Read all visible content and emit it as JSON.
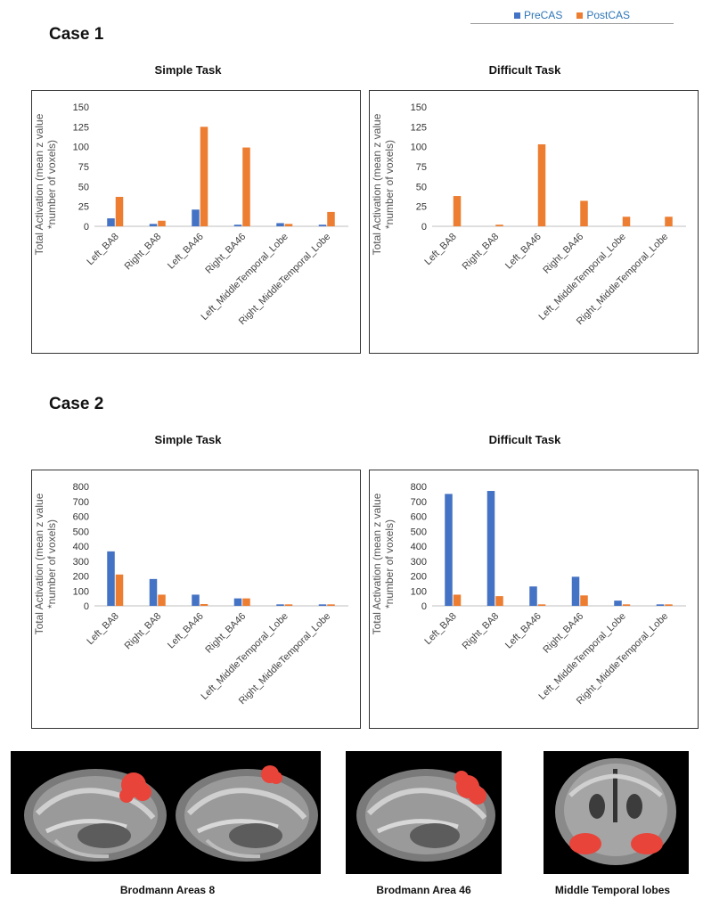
{
  "legend": {
    "items": [
      {
        "label": "PreCAS",
        "color": "#4472c4"
      },
      {
        "label": "PostCAS",
        "color": "#ed7d31"
      }
    ]
  },
  "case1": {
    "title": "Case 1"
  },
  "case2": {
    "title": "Case 2"
  },
  "chart_data": [
    {
      "type": "bar",
      "title": "Simple Task",
      "ylabel": "Total Activation (mean z value *number of voxels)",
      "categories": [
        "Left_BA8",
        "Right_BA8",
        "Left_BA46",
        "Right_BA46",
        "Left_MiddleTemporal_Lobe",
        "Right_MiddleTemporal_Lobe"
      ],
      "ylim": [
        0,
        150
      ],
      "yticks": [
        0,
        25,
        50,
        75,
        100,
        125,
        150
      ],
      "series": [
        {
          "name": "PreCAS",
          "values": [
            10,
            3,
            21,
            2,
            4,
            2
          ]
        },
        {
          "name": "PostCAS",
          "values": [
            37,
            7,
            125,
            99,
            3,
            18
          ]
        }
      ]
    },
    {
      "type": "bar",
      "title": "Difficult Task",
      "ylabel": "Total Activation (mean z value *number of voxels)",
      "categories": [
        "Left_BA8",
        "Right_BA8",
        "Left_BA46",
        "Right_BA46",
        "Left_MiddleTemporal_Lobe",
        "Right_MiddleTemporal_Lobe"
      ],
      "ylim": [
        0,
        150
      ],
      "yticks": [
        0,
        25,
        50,
        75,
        100,
        125,
        150
      ],
      "series": [
        {
          "name": "PreCAS",
          "values": [
            0,
            0,
            0,
            0,
            0,
            0
          ]
        },
        {
          "name": "PostCAS",
          "values": [
            38,
            2,
            103,
            32,
            12,
            12
          ]
        }
      ]
    },
    {
      "type": "bar",
      "title": "Simple Task",
      "ylabel": "Total Activation (mean z value *number of voxels)",
      "categories": [
        "Left_BA8",
        "Right_BA8",
        "Left_BA46",
        "Right_BA46",
        "Left_MiddleTemporal_Lobe",
        "Right_MiddleTemporal_Lobe"
      ],
      "ylim": [
        0,
        800
      ],
      "yticks": [
        0,
        100,
        200,
        300,
        400,
        500,
        600,
        700,
        800
      ],
      "series": [
        {
          "name": "PreCAS",
          "values": [
            365,
            180,
            75,
            50,
            10,
            10
          ]
        },
        {
          "name": "PostCAS",
          "values": [
            210,
            75,
            12,
            50,
            10,
            10
          ]
        }
      ]
    },
    {
      "type": "bar",
      "title": "Difficult Task",
      "ylabel": "Total Activation (mean z value *number of voxels)",
      "categories": [
        "Left_BA8",
        "Right_BA8",
        "Left_BA46",
        "Right_BA46",
        "Left_MiddleTemporal_Lobe",
        "Right_MiddleTemporal_Lobe"
      ],
      "ylim": [
        0,
        800
      ],
      "yticks": [
        0,
        100,
        200,
        300,
        400,
        500,
        600,
        700,
        800
      ],
      "series": [
        {
          "name": "PreCAS",
          "values": [
            750,
            770,
            130,
            195,
            35,
            10
          ]
        },
        {
          "name": "PostCAS",
          "values": [
            75,
            65,
            10,
            70,
            10,
            10
          ]
        }
      ]
    }
  ],
  "images": {
    "captions": [
      "Brodmann Areas 8",
      "Brodmann Area 46",
      "Middle Temporal lobes"
    ]
  }
}
